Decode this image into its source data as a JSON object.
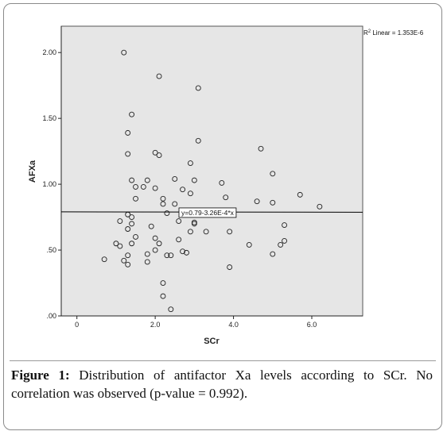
{
  "caption": {
    "label": "Figure 1:",
    "text": "Distribution of antifactor Xa levels according to SCr. No correlation was observed (p-value = 0.992)."
  },
  "colors": {
    "plot_background": "#e6e6e6",
    "marker_stroke": "#222222",
    "fit_line": "#000000"
  },
  "chart_data": {
    "type": "scatter",
    "xlabel": "SCr",
    "ylabel": "AFXa",
    "xlim": [
      -0.4,
      7.3
    ],
    "ylim": [
      0.0,
      2.2
    ],
    "xticks": [
      0,
      2.0,
      4.0,
      6.0
    ],
    "xtick_labels": [
      "0",
      "2.0",
      "4.0",
      "6.0"
    ],
    "yticks": [
      0.0,
      0.5,
      1.0,
      1.5,
      2.0
    ],
    "ytick_labels": [
      ".00",
      ".50",
      "1.00",
      "1.50",
      "2.00"
    ],
    "grid": false,
    "r2_label": "R² Linear = 1.353E-6",
    "fit": {
      "equation": "y=0.79-3.26E-4*x",
      "intercept": 0.79,
      "slope": -0.000326
    },
    "points": [
      {
        "x": 1.2,
        "y": 2.0
      },
      {
        "x": 2.1,
        "y": 1.82
      },
      {
        "x": 3.1,
        "y": 1.73
      },
      {
        "x": 1.4,
        "y": 1.53
      },
      {
        "x": 1.3,
        "y": 1.39
      },
      {
        "x": 3.1,
        "y": 1.33
      },
      {
        "x": 4.7,
        "y": 1.27
      },
      {
        "x": 1.3,
        "y": 1.23
      },
      {
        "x": 2.0,
        "y": 1.24
      },
      {
        "x": 2.1,
        "y": 1.22
      },
      {
        "x": 2.9,
        "y": 1.16
      },
      {
        "x": 5.0,
        "y": 1.08
      },
      {
        "x": 1.4,
        "y": 1.03
      },
      {
        "x": 1.8,
        "y": 1.03
      },
      {
        "x": 2.5,
        "y": 1.04
      },
      {
        "x": 3.0,
        "y": 1.03
      },
      {
        "x": 3.7,
        "y": 1.01
      },
      {
        "x": 1.5,
        "y": 0.98
      },
      {
        "x": 1.7,
        "y": 0.98
      },
      {
        "x": 2.0,
        "y": 0.97
      },
      {
        "x": 2.7,
        "y": 0.96
      },
      {
        "x": 2.9,
        "y": 0.93
      },
      {
        "x": 5.7,
        "y": 0.92
      },
      {
        "x": 1.5,
        "y": 0.89
      },
      {
        "x": 2.2,
        "y": 0.89
      },
      {
        "x": 3.8,
        "y": 0.9
      },
      {
        "x": 2.2,
        "y": 0.85
      },
      {
        "x": 2.5,
        "y": 0.85
      },
      {
        "x": 4.6,
        "y": 0.87
      },
      {
        "x": 5.0,
        "y": 0.86
      },
      {
        "x": 6.2,
        "y": 0.83
      },
      {
        "x": 2.3,
        "y": 0.78
      },
      {
        "x": 1.3,
        "y": 0.77
      },
      {
        "x": 1.4,
        "y": 0.75
      },
      {
        "x": 1.1,
        "y": 0.72
      },
      {
        "x": 1.4,
        "y": 0.7
      },
      {
        "x": 2.6,
        "y": 0.72
      },
      {
        "x": 3.0,
        "y": 0.71
      },
      {
        "x": 3.0,
        "y": 0.7
      },
      {
        "x": 1.9,
        "y": 0.68
      },
      {
        "x": 5.3,
        "y": 0.69
      },
      {
        "x": 1.3,
        "y": 0.66
      },
      {
        "x": 2.9,
        "y": 0.64
      },
      {
        "x": 3.3,
        "y": 0.64
      },
      {
        "x": 3.9,
        "y": 0.64
      },
      {
        "x": 1.5,
        "y": 0.6
      },
      {
        "x": 2.0,
        "y": 0.59
      },
      {
        "x": 2.6,
        "y": 0.58
      },
      {
        "x": 5.3,
        "y": 0.57
      },
      {
        "x": 1.0,
        "y": 0.55
      },
      {
        "x": 1.1,
        "y": 0.53
      },
      {
        "x": 1.4,
        "y": 0.55
      },
      {
        "x": 2.1,
        "y": 0.55
      },
      {
        "x": 4.4,
        "y": 0.54
      },
      {
        "x": 5.2,
        "y": 0.54
      },
      {
        "x": 2.0,
        "y": 0.5
      },
      {
        "x": 2.7,
        "y": 0.49
      },
      {
        "x": 2.8,
        "y": 0.48
      },
      {
        "x": 1.8,
        "y": 0.47
      },
      {
        "x": 2.3,
        "y": 0.46
      },
      {
        "x": 2.4,
        "y": 0.46
      },
      {
        "x": 5.0,
        "y": 0.47
      },
      {
        "x": 0.7,
        "y": 0.43
      },
      {
        "x": 1.2,
        "y": 0.42
      },
      {
        "x": 1.3,
        "y": 0.46
      },
      {
        "x": 1.8,
        "y": 0.41
      },
      {
        "x": 1.3,
        "y": 0.39
      },
      {
        "x": 3.9,
        "y": 0.37
      },
      {
        "x": 2.2,
        "y": 0.25
      },
      {
        "x": 2.2,
        "y": 0.15
      },
      {
        "x": 2.4,
        "y": 0.05
      }
    ]
  }
}
